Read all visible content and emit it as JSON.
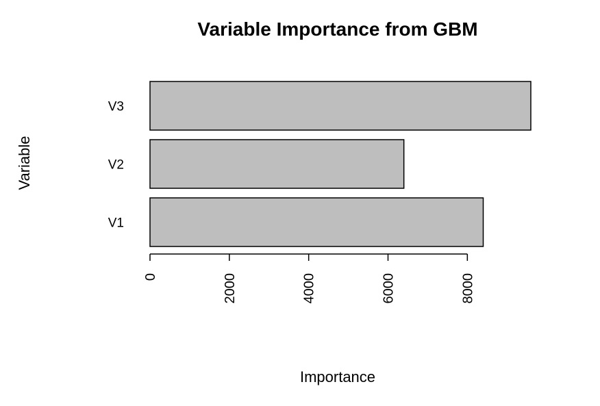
{
  "chart_data": {
    "type": "bar",
    "orientation": "horizontal",
    "title": "Variable Importance from GBM",
    "xlabel": "Importance",
    "ylabel": "Variable",
    "categories": [
      "V1",
      "V2",
      "V3"
    ],
    "values": [
      8400,
      6400,
      9600
    ],
    "xlim": [
      0,
      9600
    ],
    "xticks": [
      0,
      2000,
      4000,
      6000,
      8000
    ],
    "xtick_labels": [
      "0",
      "2000",
      "4000",
      "6000",
      "8000"
    ],
    "grid": false,
    "legend": "none",
    "colors": {
      "bar_fill": "#bebebe",
      "bar_stroke": "#000000",
      "axis": "#000000",
      "background": "#ffffff"
    }
  }
}
